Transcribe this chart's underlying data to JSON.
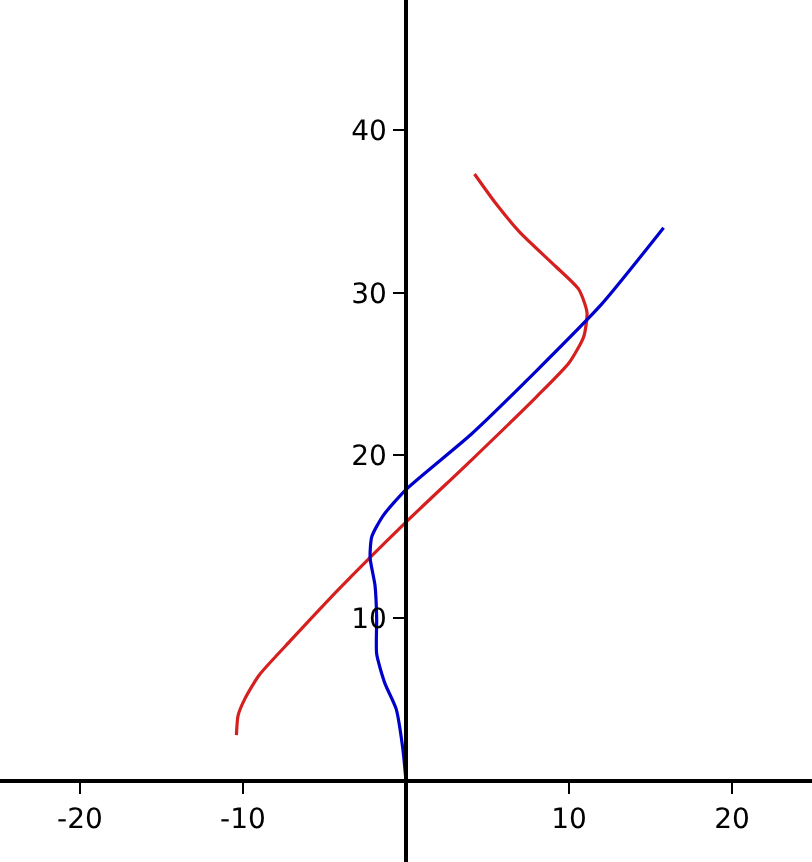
{
  "chart_data": {
    "type": "line",
    "xlim": [
      -24.9,
      24.9
    ],
    "ylim": [
      -5,
      48
    ],
    "xticks": [
      -20,
      -10,
      10,
      20
    ],
    "yticks": [
      10,
      20,
      30,
      40
    ],
    "grid": false,
    "marker": "none",
    "line_style": "solid",
    "series": [
      {
        "color": "#d62020",
        "x": [
          -10.4,
          -10.3,
          -9.9,
          -9,
          -7,
          -4,
          0,
          4,
          8,
          10,
          10.9,
          11.1,
          10.6,
          9.2,
          7,
          5.5,
          4.2
        ],
        "values": [
          2.8,
          4,
          5,
          6.5,
          8.7,
          11.9,
          15.9,
          19.7,
          23.6,
          25.7,
          27.3,
          28.8,
          30.2,
          31.6,
          33.7,
          35.5,
          37.3
        ]
      },
      {
        "color": "#0000cc",
        "x": [
          0,
          -0.2,
          -0.6,
          -1.3,
          -1.8,
          -1.8,
          -1.9,
          -2.2,
          -2.1,
          -1.4,
          0,
          4,
          8,
          12,
          15.8
        ],
        "values": [
          0,
          2,
          4.4,
          6,
          7.8,
          10,
          12,
          13.7,
          15,
          16.3,
          17.9,
          21.3,
          25.2,
          29.3,
          34
        ]
      }
    ]
  }
}
